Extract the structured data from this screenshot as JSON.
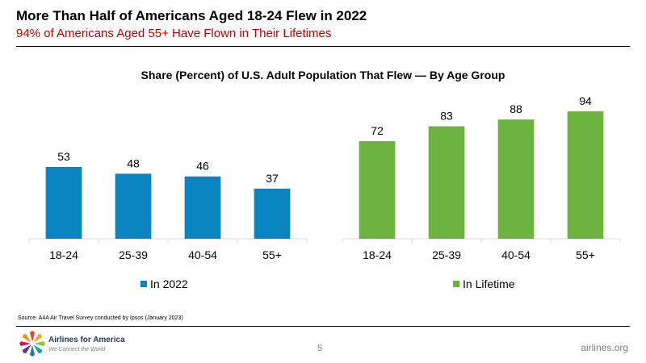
{
  "title": "More Than Half of Americans Aged 18-24 Flew in 2022",
  "subtitle": "94% of Americans Aged 55+ Have Flown in Their Lifetimes",
  "chart_heading": "Share (Percent) of U.S. Adult Population That Flew — By Age Group",
  "chart_data": [
    {
      "type": "bar",
      "title": "",
      "categories": [
        "18-24",
        "25-39",
        "40-54",
        "55+"
      ],
      "series": [
        {
          "name": "In 2022",
          "values": [
            53,
            48,
            46,
            37
          ]
        }
      ],
      "ylim": [
        0,
        100
      ],
      "grid": false,
      "legend": "bottom",
      "color": "#0a84c0"
    },
    {
      "type": "bar",
      "title": "",
      "categories": [
        "18-24",
        "25-39",
        "40-54",
        "55+"
      ],
      "series": [
        {
          "name": "In Lifetime",
          "values": [
            72,
            83,
            88,
            94
          ]
        }
      ],
      "ylim": [
        0,
        100
      ],
      "grid": false,
      "legend": "bottom",
      "color": "#6db33f"
    }
  ],
  "source": "Source: A4A Air Travel Survey conducted by Ipsos (January 2023)",
  "footer": {
    "logo_name": "Airlines for America",
    "logo_tagline": "We Connect the World",
    "page_number": "5",
    "site": "airlines.org"
  }
}
